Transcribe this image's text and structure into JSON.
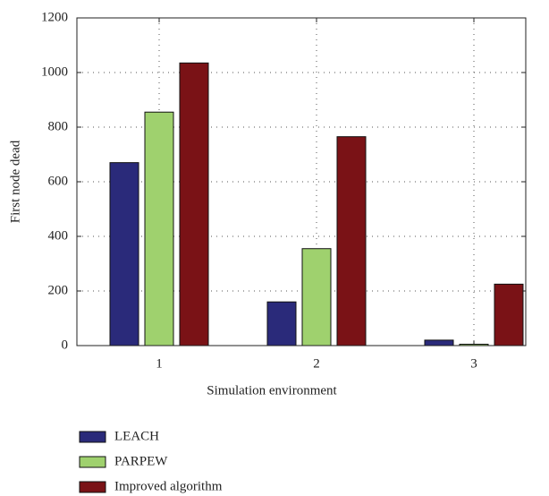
{
  "chart_data": {
    "type": "bar",
    "xlabel": "Simulation environment",
    "ylabel": "First node dead",
    "categories": [
      "1",
      "2",
      "3"
    ],
    "series": [
      {
        "name": "LEACH",
        "color": "#2a2a7a",
        "values": [
          670,
          160,
          20
        ]
      },
      {
        "name": "PARPEW",
        "color": "#9fd16e",
        "values": [
          855,
          355,
          5
        ]
      },
      {
        "name": "Improved algorithm",
        "color": "#7a1216",
        "values": [
          1035,
          765,
          225
        ]
      }
    ],
    "ylim": [
      0,
      1200
    ],
    "yticks": [
      0,
      200,
      400,
      600,
      800,
      1000,
      1200
    ],
    "grid": true
  }
}
